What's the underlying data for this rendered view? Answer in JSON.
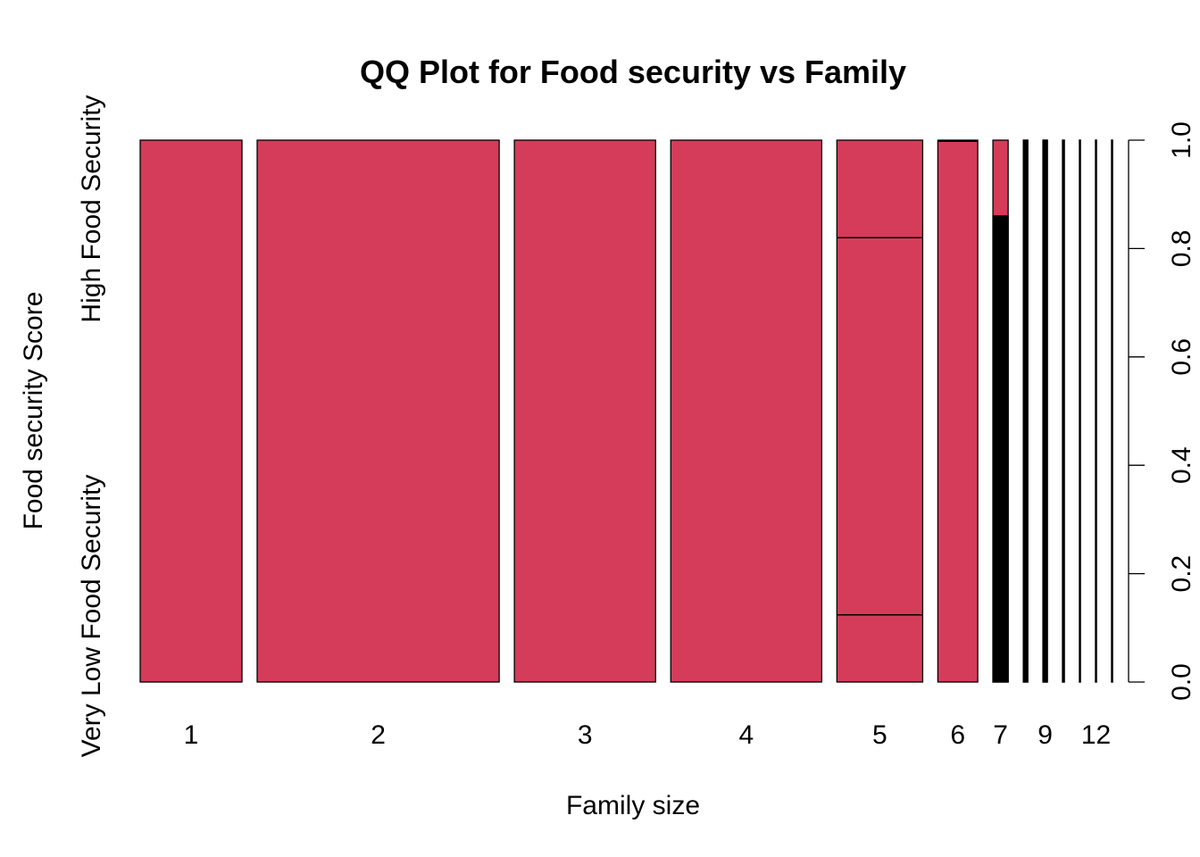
{
  "chart_data": {
    "type": "mosaic",
    "title": "QQ Plot for Food security vs Family",
    "xlabel": "Family size",
    "ylabel": "Food security Score",
    "y_category_labels": [
      "Very Low Food Security",
      "High Food Security"
    ],
    "y_right_ticks": [
      "0.0",
      "0.2",
      "0.4",
      "0.6",
      "0.8",
      "1.0"
    ],
    "ylim": [
      0,
      1
    ],
    "fill_color": "#D53C5A",
    "outline_color": "#000000",
    "columns": [
      {
        "label": "1",
        "width": 0.1036,
        "splits": [],
        "lower_fill": "#D53C5A",
        "black_fraction": 0
      },
      {
        "label": "2",
        "width": 0.2463,
        "splits": [],
        "lower_fill": "#D53C5A",
        "black_fraction": 0
      },
      {
        "label": "3",
        "width": 0.1437,
        "splits": [],
        "lower_fill": "#D53C5A",
        "black_fraction": 0
      },
      {
        "label": "4",
        "width": 0.1536,
        "splits": [],
        "lower_fill": "#D53C5A",
        "black_fraction": 0
      },
      {
        "label": "5",
        "width": 0.0873,
        "splits": [
          0.124,
          0.82
        ],
        "lower_fill": "#D53C5A",
        "black_fraction": 0
      },
      {
        "label": "6",
        "width": 0.0406,
        "splits": [
          0.998
        ],
        "lower_fill": "#D53C5A",
        "black_fraction": 0
      },
      {
        "label": "7",
        "width": 0.0155,
        "splits": [
          0.86
        ],
        "lower_fill": "#000000",
        "black_fraction": 0.86
      },
      {
        "label": "",
        "width": 0.0045,
        "splits": [],
        "lower_fill": "#000000",
        "black_fraction": 1
      },
      {
        "label": "9",
        "width": 0.0045,
        "splits": [],
        "lower_fill": "#000000",
        "black_fraction": 1
      },
      {
        "label": "",
        "width": 0.0018,
        "splits": [],
        "lower_fill": "#000000",
        "black_fraction": 1
      },
      {
        "label": "",
        "width": 0.0009,
        "splits": [],
        "lower_fill": "#000000",
        "black_fraction": 1
      },
      {
        "label": "12",
        "width": 0.0009,
        "splits": [],
        "lower_fill": "#000000",
        "black_fraction": 1
      },
      {
        "label": "",
        "width": 0.0009,
        "splits": [],
        "lower_fill": "#000000",
        "black_fraction": 1
      }
    ]
  }
}
